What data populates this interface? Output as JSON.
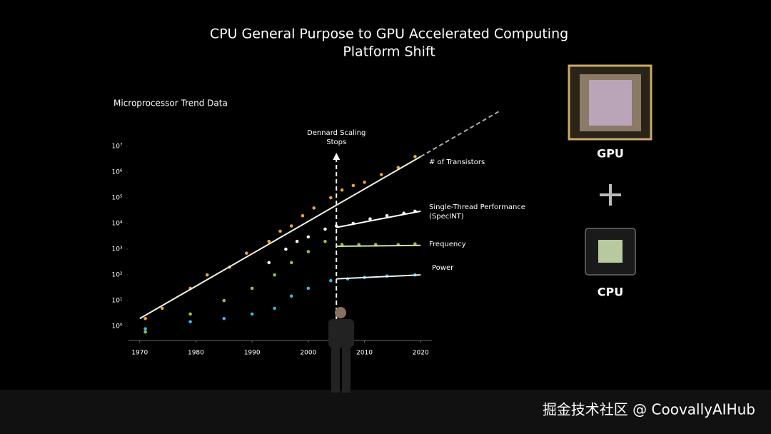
{
  "title": [
    "CPU General Purpose to GPU Accelerated Computing",
    "Platform Shift"
  ],
  "chart_data": {
    "type": "scatter",
    "title": "Microprocessor Trend Data",
    "log_y": true,
    "xlim": [
      1968,
      2022
    ],
    "xticks": [
      1970,
      1980,
      1990,
      2000,
      2010,
      2020
    ],
    "ylim": [
      0.28,
      36000000
    ],
    "yticks": [
      {
        "value": 1,
        "label": "10⁰"
      },
      {
        "value": 10,
        "label": "10¹"
      },
      {
        "value": 100,
        "label": "10²"
      },
      {
        "value": 1000,
        "label": "10³"
      },
      {
        "value": 10000,
        "label": "10⁴"
      },
      {
        "value": 100000,
        "label": "10⁵"
      },
      {
        "value": 1000000,
        "label": "10⁶"
      },
      {
        "value": 10000000,
        "label": "10⁷"
      }
    ],
    "annotation": {
      "text": "Dennard Scaling Stops",
      "x": 2005
    },
    "series": [
      {
        "name": "# of Transistors",
        "color": "#e8a33a",
        "x": [
          1971,
          1974,
          1979,
          1982,
          1986,
          1989,
          1993,
          1995,
          1997,
          1999,
          2001,
          2004,
          2006,
          2008,
          2010,
          2013,
          2016,
          2019
        ],
        "values": [
          2,
          5,
          30,
          100,
          200,
          700,
          2000,
          5000,
          8000,
          20000,
          40000,
          100000,
          200000,
          300000,
          400000,
          800000,
          1500000,
          4000000
        ],
        "trend_x": [
          1970,
          2020
        ],
        "trend_values": [
          2,
          4000000
        ]
      },
      {
        "name": "Single-Thread Performance (SpecINT)",
        "color": "#f2efe0",
        "x": [
          1993,
          1996,
          1998,
          2000,
          2003,
          2005,
          2008,
          2011,
          2014,
          2017,
          2019
        ],
        "values": [
          300,
          1000,
          2000,
          3000,
          6000,
          8000,
          10000,
          15000,
          20000,
          25000,
          30000
        ],
        "trend_x": [
          2005,
          2020
        ],
        "trend_values": [
          7000,
          30000
        ]
      },
      {
        "name": "Frequency",
        "color": "#8dc63f",
        "x": [
          1971,
          1979,
          1985,
          1990,
          1994,
          1997,
          2000,
          2003,
          2006,
          2009,
          2012,
          2016,
          2019
        ],
        "values": [
          0.6,
          3,
          10,
          30,
          100,
          300,
          800,
          2000,
          1500,
          1500,
          1500,
          1500,
          1600
        ],
        "trend_x": [
          2005,
          2020
        ],
        "trend_values": [
          1300,
          1400
        ]
      },
      {
        "name": "Power",
        "color": "#3bb6e0",
        "x": [
          1971,
          1979,
          1985,
          1990,
          1994,
          1997,
          2000,
          2004,
          2007,
          2010,
          2014,
          2019
        ],
        "values": [
          0.8,
          1.5,
          2,
          3,
          5,
          15,
          30,
          60,
          70,
          80,
          90,
          100
        ],
        "trend_x": [
          2005,
          2020
        ],
        "trend_values": [
          70,
          100
        ]
      }
    ]
  },
  "gpu_label": "GPU",
  "cpu_label": "CPU",
  "watermark": "掘金技术社区 @ CoovallyAIHub"
}
